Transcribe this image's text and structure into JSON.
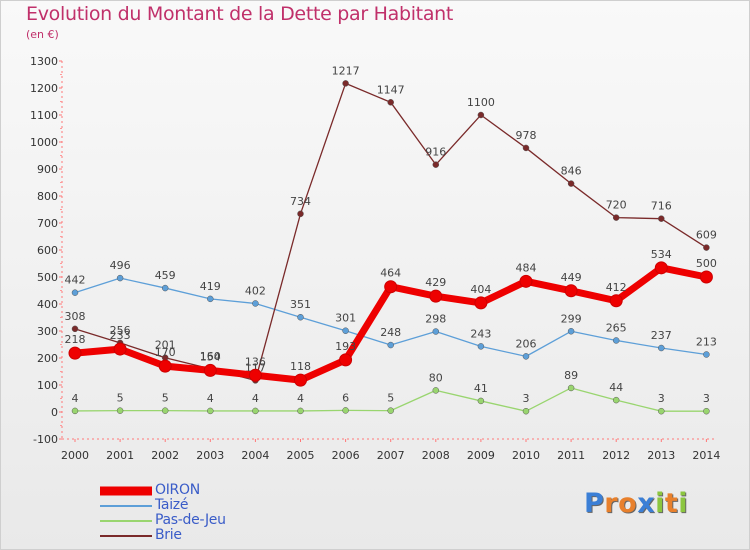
{
  "header": {
    "title": "Evolution du Montant de la Dette par Habitant",
    "subtitle": "(en €)"
  },
  "logo": {
    "letters": [
      {
        "ch": "P",
        "color": "#3b7fd6"
      },
      {
        "ch": "r",
        "color": "#e8802c"
      },
      {
        "ch": "o",
        "color": "#e8802c"
      },
      {
        "ch": "x",
        "color": "#3b7fd6"
      },
      {
        "ch": "i",
        "color": "#8cc63f"
      },
      {
        "ch": "t",
        "color": "#e8802c"
      },
      {
        "ch": "i",
        "color": "#8cc63f"
      }
    ]
  },
  "chart_data": {
    "type": "line",
    "title": "Evolution du Montant de la Dette par Habitant",
    "ylabel": "(en €)",
    "xlabel": "",
    "x": [
      "2000",
      "2001",
      "2002",
      "2003",
      "2004",
      "2005",
      "2006",
      "2007",
      "2008",
      "2009",
      "2010",
      "2011",
      "2012",
      "2013",
      "2014"
    ],
    "ylim": [
      -100,
      1300
    ],
    "yticks": [
      "-100",
      "0",
      "100",
      "200",
      "300",
      "400",
      "500",
      "600",
      "700",
      "800",
      "900",
      "1000",
      "1100",
      "1200",
      "1300"
    ],
    "grid": false,
    "legend_position": "bottom-left",
    "series": [
      {
        "name": "OIRON",
        "color": "#ee0000",
        "values": [
          218,
          233,
          170,
          154,
          136,
          118,
          193,
          464,
          429,
          404,
          484,
          449,
          412,
          534,
          500
        ],
        "labels": [
          "218",
          "233",
          "170",
          "154",
          "136",
          "118",
          "193",
          "464",
          "429",
          "404",
          "484",
          "449",
          "412",
          "534",
          "500"
        ]
      },
      {
        "name": "Taizé",
        "color": "#5d9fd8",
        "values": [
          442,
          496,
          459,
          419,
          402,
          351,
          301,
          248,
          298,
          243,
          206,
          299,
          265,
          237,
          213
        ],
        "labels": [
          "442",
          "496",
          "459",
          "419",
          "402",
          "351",
          "301",
          "248",
          "298",
          "243",
          "206",
          "299",
          "265",
          "237",
          "213"
        ]
      },
      {
        "name": "Pas-de-Jeu",
        "color": "#99d56f",
        "values": [
          4,
          5,
          5,
          4,
          4,
          4,
          6,
          5,
          80,
          41,
          3,
          89,
          44,
          3,
          3
        ],
        "labels": [
          "4",
          "5",
          "5",
          "4",
          "4",
          "4",
          "6",
          "5",
          "80",
          "41",
          "3",
          "89",
          "44",
          "3",
          "3"
        ]
      },
      {
        "name": "Brie",
        "color": "#7a2a2a",
        "values": [
          308,
          256,
          201,
          160,
          117,
          734,
          1217,
          1147,
          916,
          1100,
          978,
          846,
          720,
          716,
          609
        ],
        "labels": [
          "308",
          "256",
          "201",
          "160",
          "117",
          "734",
          "1217",
          "1147",
          "916",
          "1100",
          "978",
          "846",
          "720",
          "716",
          "609"
        ]
      }
    ]
  }
}
